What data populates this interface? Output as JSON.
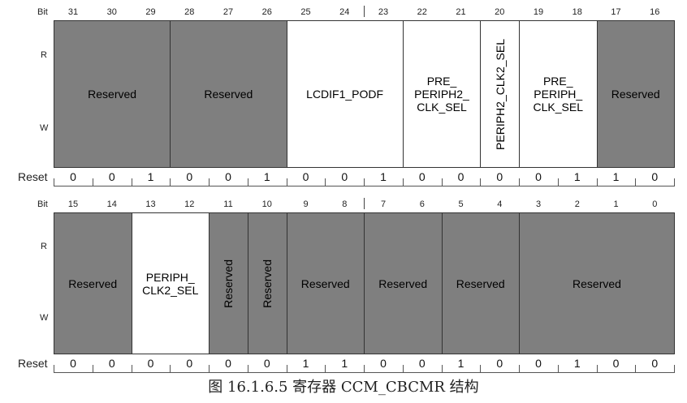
{
  "labels": {
    "bit": "Bit",
    "read": "R",
    "write": "W",
    "reset": "Reset"
  },
  "caption": "图 16.1.6.5 寄存器 CCM_CBCMR 结构",
  "colors": {
    "reserved": "#7f7f7f",
    "named": "#ffffff"
  },
  "rows": [
    {
      "bits": [
        "31",
        "30",
        "29",
        "28",
        "27",
        "26",
        "25",
        "24",
        "23",
        "22",
        "21",
        "20",
        "19",
        "18",
        "17",
        "16"
      ],
      "reset": [
        "0",
        "0",
        "1",
        "0",
        "0",
        "1",
        "0",
        "0",
        "1",
        "0",
        "0",
        "0",
        "0",
        "1",
        "1",
        "0"
      ],
      "fields": [
        {
          "name": "Reserved",
          "reserved": true,
          "span": 3,
          "vertical": false
        },
        {
          "name": "Reserved",
          "reserved": true,
          "span": 3,
          "vertical": false
        },
        {
          "name": "LCDIF1_PODF",
          "reserved": false,
          "span": 3,
          "vertical": false
        },
        {
          "name": "PRE_\nPERIPH2_\nCLK_SEL",
          "reserved": false,
          "span": 2,
          "vertical": false
        },
        {
          "name": "PERIPH2_CLK2_SEL",
          "reserved": false,
          "span": 1,
          "vertical": true
        },
        {
          "name": "PRE_\nPERIPH_\nCLK_SEL",
          "reserved": false,
          "span": 2,
          "vertical": false
        },
        {
          "name": "Reserved",
          "reserved": true,
          "span": 2,
          "vertical": false
        }
      ]
    },
    {
      "bits": [
        "15",
        "14",
        "13",
        "12",
        "11",
        "10",
        "9",
        "8",
        "7",
        "6",
        "5",
        "4",
        "3",
        "2",
        "1",
        "0"
      ],
      "reset": [
        "0",
        "0",
        "0",
        "0",
        "0",
        "0",
        "1",
        "1",
        "0",
        "0",
        "1",
        "0",
        "0",
        "1",
        "0",
        "0"
      ],
      "fields": [
        {
          "name": "Reserved",
          "reserved": true,
          "span": 2,
          "vertical": false
        },
        {
          "name": "PERIPH_\nCLK2_SEL",
          "reserved": false,
          "span": 2,
          "vertical": false
        },
        {
          "name": "Reserved",
          "reserved": true,
          "span": 1,
          "vertical": true
        },
        {
          "name": "Reserved",
          "reserved": true,
          "span": 1,
          "vertical": true
        },
        {
          "name": "Reserved",
          "reserved": true,
          "span": 2,
          "vertical": false
        },
        {
          "name": "Reserved",
          "reserved": true,
          "span": 2,
          "vertical": false
        },
        {
          "name": "Reserved",
          "reserved": true,
          "span": 2,
          "vertical": false
        },
        {
          "name": "Reserved",
          "reserved": true,
          "span": 4,
          "vertical": false
        }
      ]
    }
  ]
}
